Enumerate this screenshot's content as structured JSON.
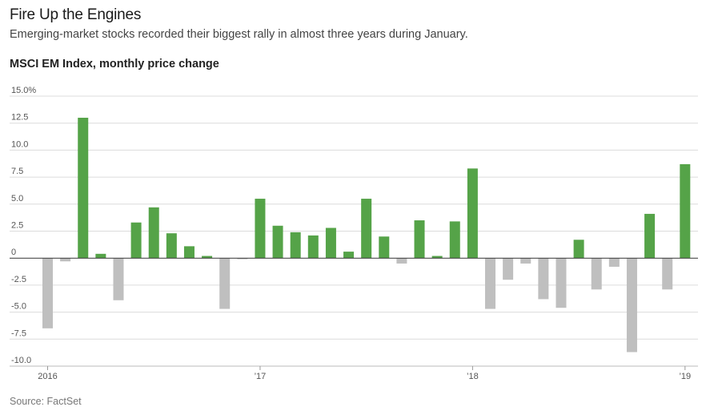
{
  "header": {
    "title": "Fire Up the Engines",
    "subtitle": "Emerging-market stocks recorded their biggest rally in almost three years during January.",
    "chart_label": "MSCI EM Index, monthly price change"
  },
  "footer": {
    "source": "Source: FactSet"
  },
  "colors": {
    "positive": "#55a348",
    "negative": "#bfbfbf",
    "grid": "#dcdcdc",
    "zero_line": "#333333"
  },
  "chart_data": {
    "type": "bar",
    "title": "MSCI EM Index, monthly price change",
    "ylim": [
      -10,
      15
    ],
    "y_ticks": [
      {
        "value": 15,
        "label": "15.0%"
      },
      {
        "value": 12.5,
        "label": "12.5"
      },
      {
        "value": 10,
        "label": "10.0"
      },
      {
        "value": 7.5,
        "label": "7.5"
      },
      {
        "value": 5,
        "label": "5.0"
      },
      {
        "value": 2.5,
        "label": "2.5"
      },
      {
        "value": 0,
        "label": "0"
      },
      {
        "value": -2.5,
        "label": "-2.5"
      },
      {
        "value": -5,
        "label": "-5.0"
      },
      {
        "value": -7.5,
        "label": "-7.5"
      },
      {
        "value": -10,
        "label": "-10.0"
      }
    ],
    "x_ticks": [
      {
        "index": 0,
        "label": "2016"
      },
      {
        "index": 12,
        "label": "’17"
      },
      {
        "index": 24,
        "label": "’18"
      },
      {
        "index": 36,
        "label": "’19"
      }
    ],
    "grid": true,
    "values": [
      -6.5,
      -0.3,
      13.0,
      0.4,
      -3.9,
      3.3,
      4.7,
      2.3,
      1.1,
      0.2,
      -4.7,
      -0.1,
      5.5,
      3.0,
      2.4,
      2.1,
      2.8,
      0.6,
      5.5,
      2.0,
      -0.5,
      3.5,
      0.2,
      3.4,
      8.3,
      -4.7,
      -2.0,
      -0.5,
      -3.8,
      -4.6,
      1.7,
      -2.9,
      -0.8,
      -8.7,
      4.1,
      -2.9,
      8.7
    ]
  }
}
